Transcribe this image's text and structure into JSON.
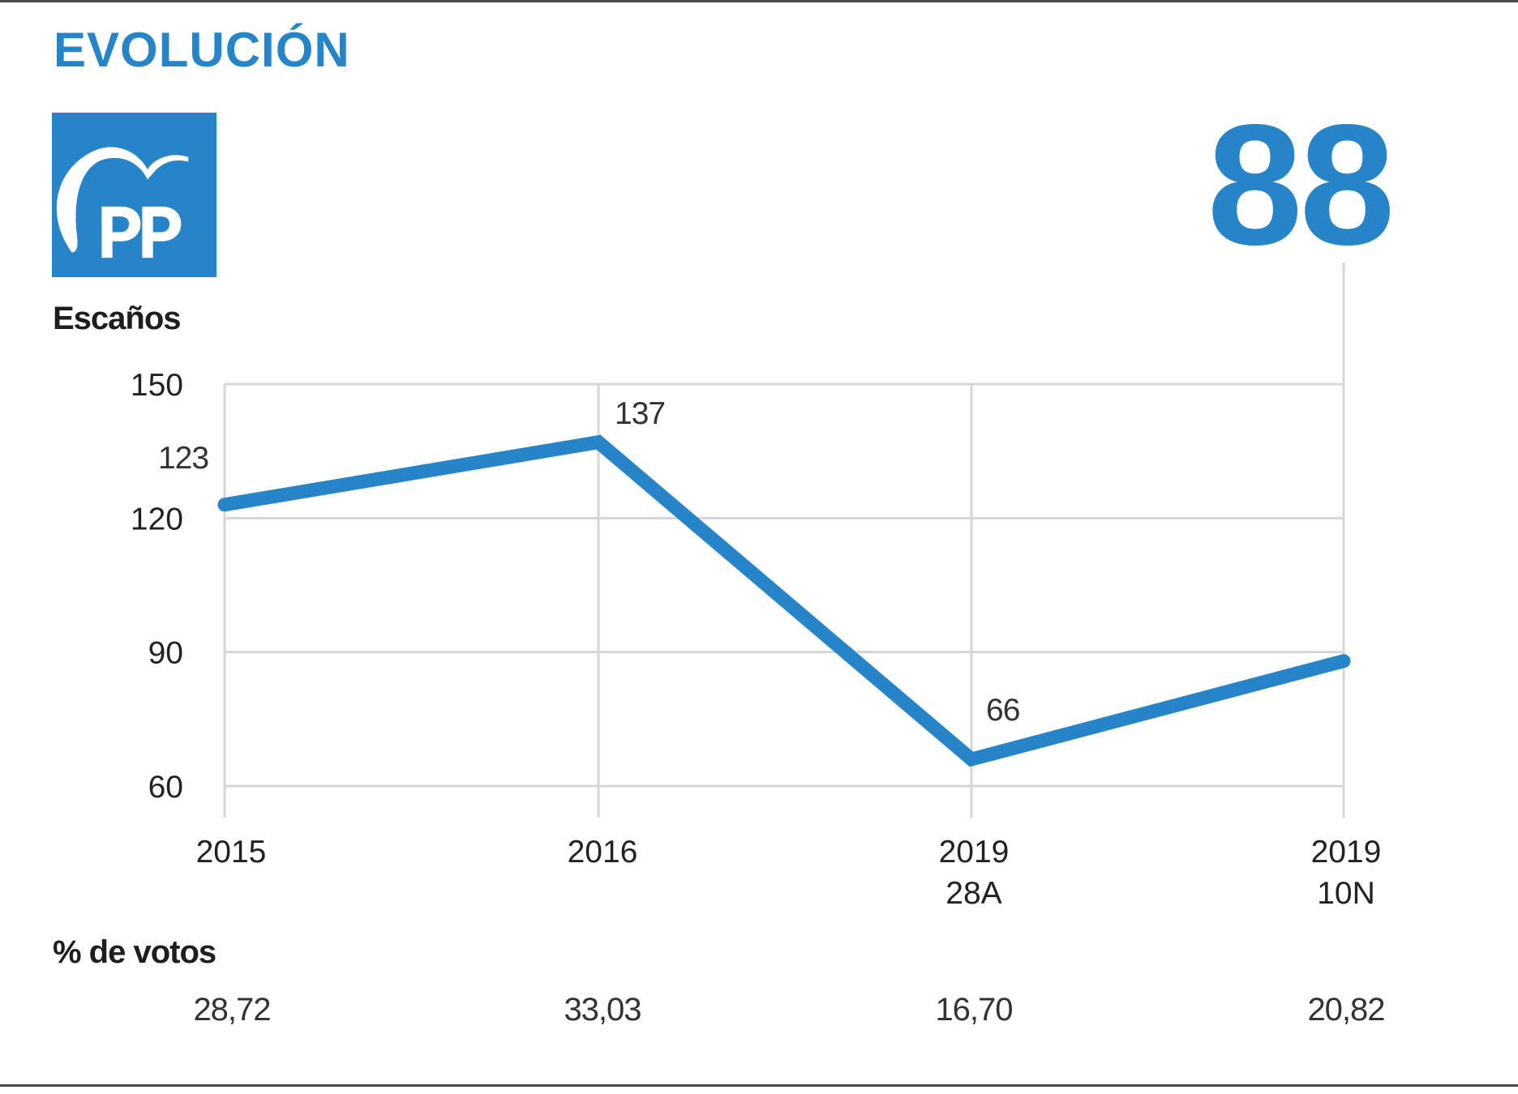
{
  "header": {
    "title": "EVOLUCIÓN",
    "party_logo": {
      "icon": "pp-logo-icon",
      "text": "PP"
    },
    "current_seats": "88",
    "accent_color": "#2585c8"
  },
  "labels": {
    "seats": "Escaños",
    "votes": "% de votos"
  },
  "chart_data": {
    "type": "line",
    "title": "EVOLUCIÓN",
    "ylabel": "Escaños",
    "xlabel": "",
    "categories": [
      {
        "line1": "2015",
        "line2": ""
      },
      {
        "line1": "2016",
        "line2": ""
      },
      {
        "line1": "2019",
        "line2": "28A"
      },
      {
        "line1": "2019",
        "line2": "10N"
      }
    ],
    "series": [
      {
        "name": "Escaños",
        "values": [
          123,
          137,
          66,
          88
        ],
        "color": "#2585c8"
      }
    ],
    "data_labels": [
      "123",
      "137",
      "66",
      ""
    ],
    "yticks": [
      150,
      120,
      90,
      60
    ],
    "ytick_labels": [
      "150",
      "120",
      "90",
      "60"
    ],
    "ylim": [
      60,
      150
    ],
    "grid": true,
    "grid_color": "#d6d6d6",
    "vote_share": [
      "28,72",
      "33,03",
      "16,70",
      "20,82"
    ]
  }
}
